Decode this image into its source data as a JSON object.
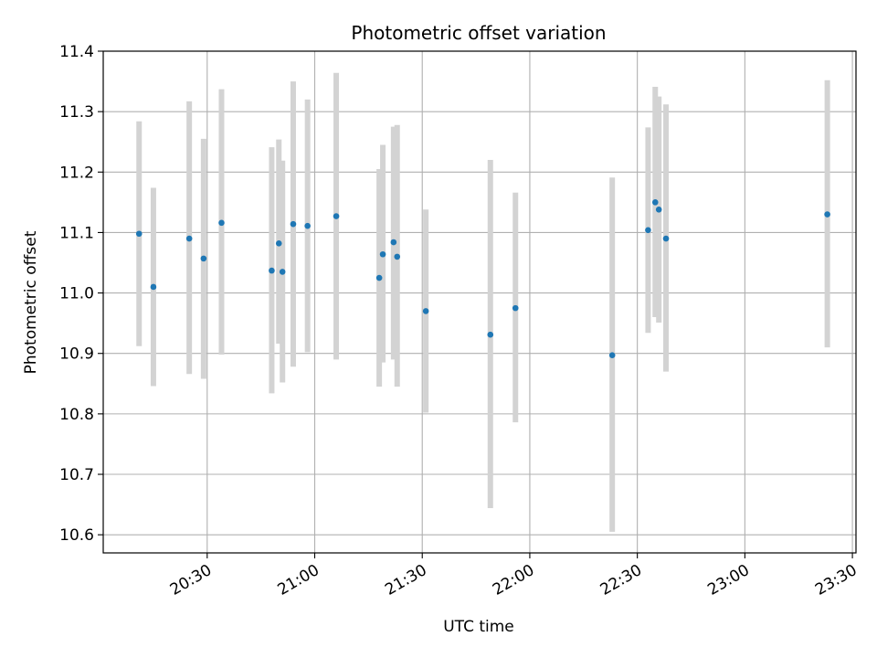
{
  "chart_data": {
    "type": "scatter",
    "title": "Photometric offset variation",
    "xlabel": "UTC time",
    "ylabel": "Photometric offset",
    "x_axis_type": "time",
    "xlim": [
      "20:01",
      "23:31"
    ],
    "ylim": [
      10.57,
      11.4
    ],
    "x_ticks": [
      "20:30",
      "21:00",
      "21:30",
      "22:00",
      "22:30",
      "23:00",
      "23:30"
    ],
    "y_ticks": [
      10.6,
      10.7,
      10.8,
      10.9,
      11.0,
      11.1,
      11.2,
      11.3,
      11.4
    ],
    "y_tick_labels": [
      "10.6",
      "10.7",
      "10.8",
      "10.9",
      "11.0",
      "11.1",
      "11.2",
      "11.3",
      "11.4"
    ],
    "grid": true,
    "tick_label_rotation": "30 degrees",
    "colors": {
      "point": "#1f77b4",
      "errorbar": "#d3d3d3",
      "grid": "#b0b0b0",
      "axes": "#000000"
    },
    "points": [
      {
        "x": "20:11",
        "y": 11.098,
        "ylow": 10.912,
        "yhigh": 11.284
      },
      {
        "x": "20:15",
        "y": 11.01,
        "ylow": 10.846,
        "yhigh": 11.174
      },
      {
        "x": "20:25",
        "y": 11.09,
        "ylow": 10.866,
        "yhigh": 11.317
      },
      {
        "x": "20:29",
        "y": 11.057,
        "ylow": 10.858,
        "yhigh": 11.255
      },
      {
        "x": "20:34",
        "y": 11.116,
        "ylow": 10.898,
        "yhigh": 11.337
      },
      {
        "x": "20:48",
        "y": 11.037,
        "ylow": 10.834,
        "yhigh": 11.241
      },
      {
        "x": "20:50",
        "y": 11.082,
        "ylow": 10.916,
        "yhigh": 11.254
      },
      {
        "x": "20:51",
        "y": 11.035,
        "ylow": 10.852,
        "yhigh": 11.219
      },
      {
        "x": "20:54",
        "y": 11.114,
        "ylow": 10.878,
        "yhigh": 11.35
      },
      {
        "x": "20:58",
        "y": 11.111,
        "ylow": 10.902,
        "yhigh": 11.32
      },
      {
        "x": "21:06",
        "y": 11.127,
        "ylow": 10.89,
        "yhigh": 11.364
      },
      {
        "x": "21:18",
        "y": 11.025,
        "ylow": 10.845,
        "yhigh": 11.205
      },
      {
        "x": "21:19",
        "y": 11.064,
        "ylow": 10.885,
        "yhigh": 11.245
      },
      {
        "x": "21:22",
        "y": 11.084,
        "ylow": 10.89,
        "yhigh": 11.275
      },
      {
        "x": "21:23",
        "y": 11.06,
        "ylow": 10.845,
        "yhigh": 11.278
      },
      {
        "x": "21:31",
        "y": 10.97,
        "ylow": 10.802,
        "yhigh": 11.138
      },
      {
        "x": "21:49",
        "y": 10.931,
        "ylow": 10.644,
        "yhigh": 11.22
      },
      {
        "x": "21:56",
        "y": 10.975,
        "ylow": 10.786,
        "yhigh": 11.166
      },
      {
        "x": "22:23",
        "y": 10.897,
        "ylow": 10.605,
        "yhigh": 11.191
      },
      {
        "x": "22:33",
        "y": 11.104,
        "ylow": 10.934,
        "yhigh": 11.274
      },
      {
        "x": "22:35",
        "y": 11.15,
        "ylow": 10.96,
        "yhigh": 11.341
      },
      {
        "x": "22:36",
        "y": 11.138,
        "ylow": 10.951,
        "yhigh": 11.325
      },
      {
        "x": "22:38",
        "y": 11.09,
        "ylow": 10.87,
        "yhigh": 11.312
      },
      {
        "x": "23:23",
        "y": 11.13,
        "ylow": 10.91,
        "yhigh": 11.352
      }
    ]
  }
}
